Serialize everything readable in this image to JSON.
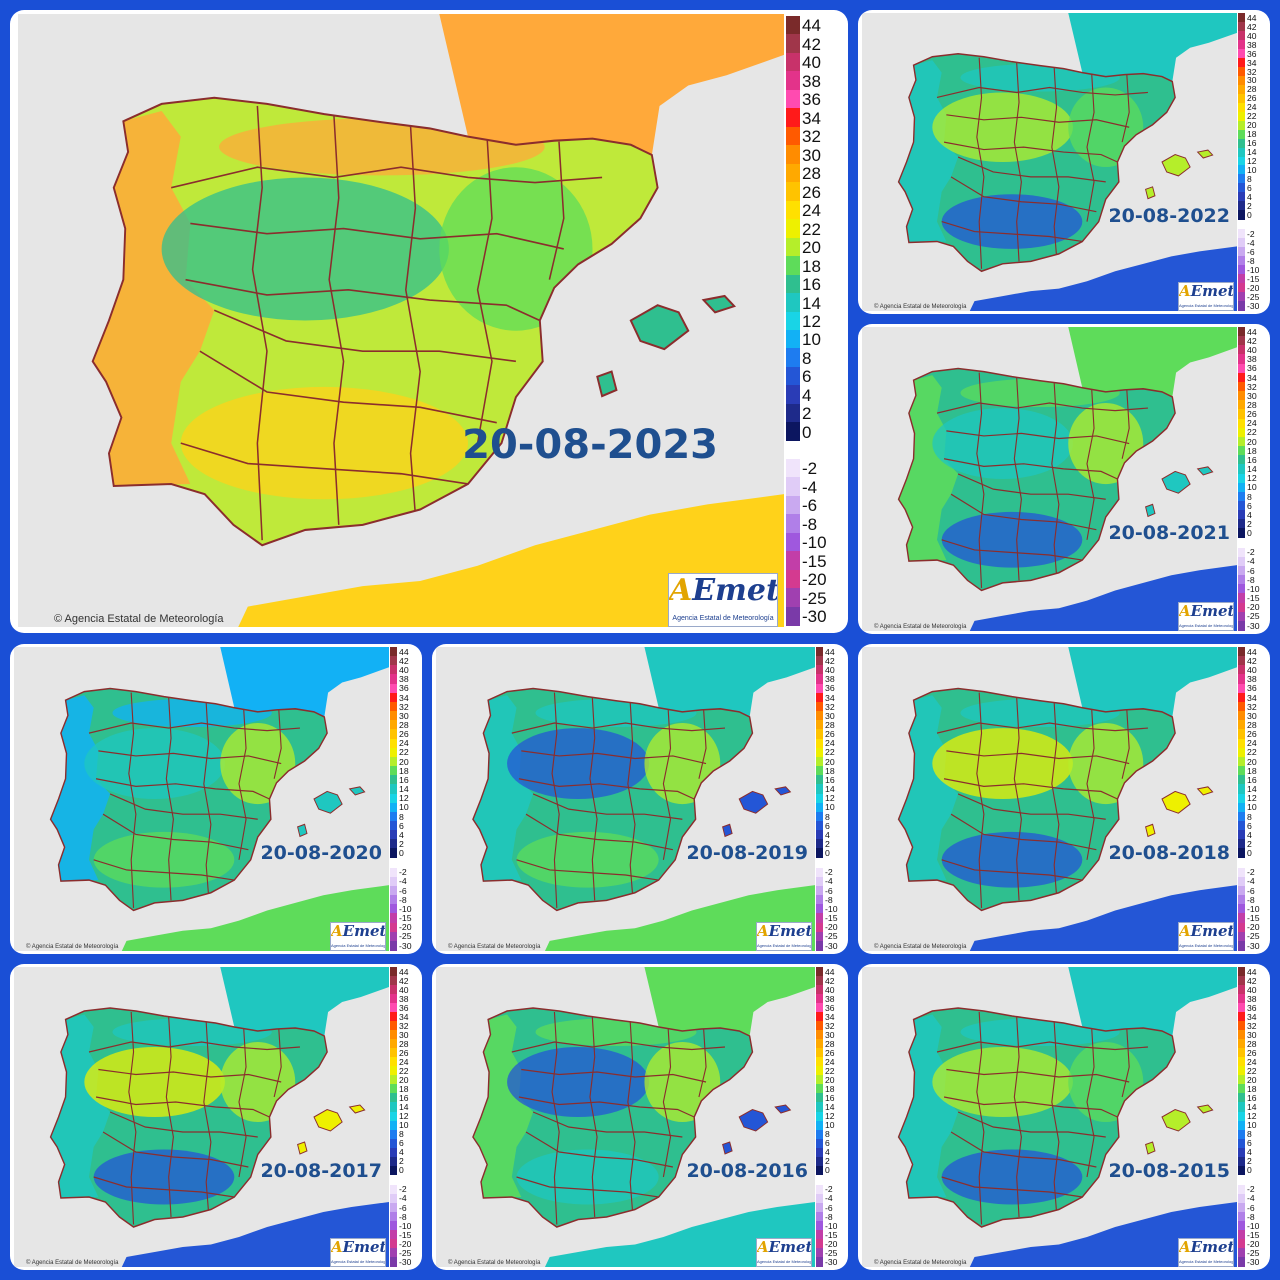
{
  "copyright": "Agencia Estatal de Meteorología",
  "logo": {
    "brand_a": "A",
    "brand_rest": "Emet",
    "subtitle": "Agencia Estatal de Meteorología"
  },
  "colors": {
    "sea": "#e6e6e6",
    "border_line": "#8b2d2d",
    "frame": "#1a4fd6",
    "date_text": "#1f4f8f"
  },
  "legend": {
    "positive": [
      {
        "label": "44",
        "color": "#7a2a2a"
      },
      {
        "label": "42",
        "color": "#a0364a"
      },
      {
        "label": "40",
        "color": "#c8326a"
      },
      {
        "label": "38",
        "color": "#e3338a"
      },
      {
        "label": "36",
        "color": "#ff4bb0"
      },
      {
        "label": "34",
        "color": "#ff1a1a"
      },
      {
        "label": "32",
        "color": "#ff5a00"
      },
      {
        "label": "30",
        "color": "#ff8c00"
      },
      {
        "label": "28",
        "color": "#ffa900"
      },
      {
        "label": "26",
        "color": "#ffc300"
      },
      {
        "label": "24",
        "color": "#ffe000"
      },
      {
        "label": "22",
        "color": "#eef000"
      },
      {
        "label": "20",
        "color": "#b5ee2a"
      },
      {
        "label": "18",
        "color": "#5edc5a"
      },
      {
        "label": "16",
        "color": "#2fbf8f"
      },
      {
        "label": "14",
        "color": "#1fc7c0"
      },
      {
        "label": "12",
        "color": "#19d4e6"
      },
      {
        "label": "10",
        "color": "#12b1f5"
      },
      {
        "label": "8",
        "color": "#1e7cf0"
      },
      {
        "label": "6",
        "color": "#2456d6"
      },
      {
        "label": "4",
        "color": "#2a3cb6"
      },
      {
        "label": "2",
        "color": "#1e2a8a"
      },
      {
        "label": "0",
        "color": "#0c1660"
      }
    ],
    "negative": [
      {
        "label": "-2",
        "color": "#f0e4fb"
      },
      {
        "label": "-4",
        "color": "#e0ccf7"
      },
      {
        "label": "-6",
        "color": "#c9a9f0"
      },
      {
        "label": "-8",
        "color": "#b07fe8"
      },
      {
        "label": "-10",
        "color": "#9f58de"
      },
      {
        "label": "-15",
        "color": "#c23ea8"
      },
      {
        "label": "-20",
        "color": "#d43a90"
      },
      {
        "label": "-25",
        "color": "#a040b0"
      },
      {
        "label": "-30",
        "color": "#7a3aa8"
      }
    ]
  },
  "maps": [
    {
      "date": "20-08-2023",
      "land": "#bfe93a",
      "patches": [
        {
          "c": "#2fbf8f"
        },
        {
          "c": "#ffd21a"
        },
        {
          "c": "#5edc5a"
        },
        {
          "c": "#ffa93a"
        }
      ]
    },
    {
      "date": "20-08-2022",
      "land": "#2fbf8f",
      "patches": [
        {
          "c": "#b5ee2a"
        },
        {
          "c": "#2456d6"
        },
        {
          "c": "#5edc5a"
        },
        {
          "c": "#1fc7c0"
        }
      ]
    },
    {
      "date": "20-08-2021",
      "land": "#2fbf8f",
      "patches": [
        {
          "c": "#1fc7c0"
        },
        {
          "c": "#2456d6"
        },
        {
          "c": "#b5ee2a"
        },
        {
          "c": "#5edc5a"
        }
      ]
    },
    {
      "date": "20-08-2020",
      "land": "#2fbf8f",
      "patches": [
        {
          "c": "#1fc7c0"
        },
        {
          "c": "#5edc5a"
        },
        {
          "c": "#b5ee2a"
        },
        {
          "c": "#12b1f5"
        }
      ]
    },
    {
      "date": "20-08-2019",
      "land": "#2fbf8f",
      "patches": [
        {
          "c": "#2456d6"
        },
        {
          "c": "#5edc5a"
        },
        {
          "c": "#b5ee2a"
        },
        {
          "c": "#1fc7c0"
        }
      ]
    },
    {
      "date": "20-08-2018",
      "land": "#2fbf8f",
      "patches": [
        {
          "c": "#eef000"
        },
        {
          "c": "#2456d6"
        },
        {
          "c": "#b5ee2a"
        },
        {
          "c": "#1fc7c0"
        }
      ]
    },
    {
      "date": "20-08-2017",
      "land": "#2fbf8f",
      "patches": [
        {
          "c": "#eef000"
        },
        {
          "c": "#2456d6"
        },
        {
          "c": "#b5ee2a"
        },
        {
          "c": "#1fc7c0"
        }
      ]
    },
    {
      "date": "20-08-2016",
      "land": "#2fbf8f",
      "patches": [
        {
          "c": "#2456d6"
        },
        {
          "c": "#1fc7c0"
        },
        {
          "c": "#b5ee2a"
        },
        {
          "c": "#5edc5a"
        }
      ]
    },
    {
      "date": "20-08-2015",
      "land": "#2fbf8f",
      "patches": [
        {
          "c": "#b5ee2a"
        },
        {
          "c": "#2456d6"
        },
        {
          "c": "#5edc5a"
        },
        {
          "c": "#1fc7c0"
        }
      ]
    }
  ]
}
